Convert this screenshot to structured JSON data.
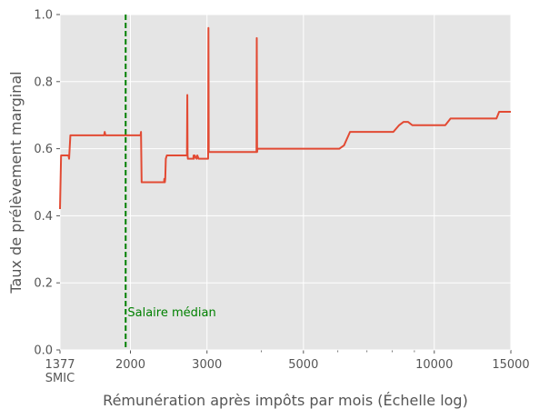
{
  "chart_data": {
    "type": "line",
    "xlabel": "Rémunération après impôts par mois (Échelle log)",
    "ylabel": "Taux de prélèvement marginal",
    "x_scale": "log",
    "xlim": [
      1377,
      15000
    ],
    "ylim": [
      0,
      1
    ],
    "grid": true,
    "x_ticks": [
      {
        "value": 1377,
        "label": "1377\nSMIC"
      },
      {
        "value": 2000,
        "label": "2000"
      },
      {
        "value": 3000,
        "label": "3000"
      },
      {
        "value": 5000,
        "label": "5000"
      },
      {
        "value": 10000,
        "label": "10000"
      },
      {
        "value": 15000,
        "label": "15000"
      }
    ],
    "x_minor_ticks": [
      4000,
      6000,
      7000,
      8000,
      9000
    ],
    "y_ticks": [
      0,
      0.2,
      0.4,
      0.6,
      0.8,
      1.0
    ],
    "y_tick_labels": [
      "0.0",
      "0.2",
      "0.4",
      "0.6",
      "0.8",
      "1.0"
    ],
    "series": [
      {
        "color": "#E24A33",
        "x": [
          1377,
          1385,
          1400,
          1440,
          1445,
          1455,
          1740,
          1745,
          1752,
          2110,
          2115,
          2122,
          2390,
          2393,
          2400,
          2405,
          2412,
          2425,
          2435,
          2698,
          2703,
          2707,
          2711,
          2790,
          2795,
          2800,
          2810,
          2840,
          2850,
          2870,
          2900,
          2905,
          3018,
          3023,
          3028,
          3033,
          3900,
          3905,
          3912,
          3920,
          6050,
          6200,
          6400,
          8050,
          8300,
          8500,
          8700,
          8900,
          10600,
          10900,
          13900,
          14100,
          15000
        ],
        "y": [
          0.42,
          0.58,
          0.58,
          0.58,
          0.57,
          0.64,
          0.64,
          0.65,
          0.64,
          0.64,
          0.65,
          0.5,
          0.5,
          0.51,
          0.5,
          0.51,
          0.57,
          0.58,
          0.58,
          0.58,
          0.76,
          0.58,
          0.57,
          0.57,
          0.58,
          0.57,
          0.58,
          0.57,
          0.58,
          0.57,
          0.57,
          0.57,
          0.57,
          0.96,
          0.59,
          0.59,
          0.59,
          0.93,
          0.59,
          0.6,
          0.6,
          0.61,
          0.65,
          0.65,
          0.67,
          0.68,
          0.68,
          0.67,
          0.67,
          0.69,
          0.69,
          0.71,
          0.71
        ]
      }
    ],
    "annotations": [
      {
        "type": "vline",
        "x": 1950,
        "color": "#008000",
        "style": "dashed"
      },
      {
        "type": "text",
        "x": 1970,
        "y": 0.1,
        "text": "Salaire médian",
        "color": "#008000"
      }
    ]
  }
}
